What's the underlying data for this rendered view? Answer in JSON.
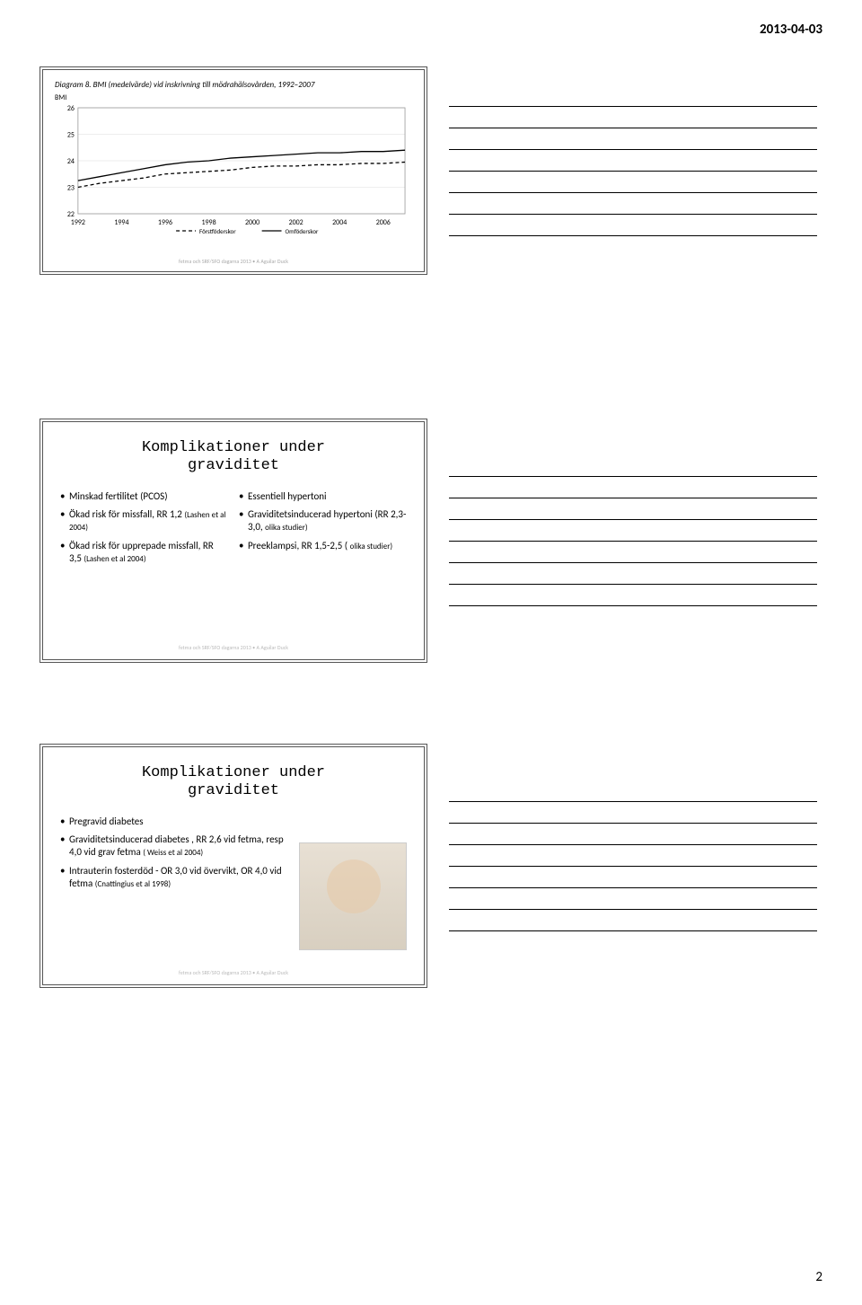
{
  "header_date": "2013-04-03",
  "page_number": "2",
  "slide1": {
    "diagram_label": "Diagram 8.",
    "title_rest": "BMI (medelvärde) vid inskrivning till mödrahälsovården, 1992–2007",
    "y_label": "BMI",
    "y_ticks": [
      22,
      23,
      24,
      25,
      26
    ],
    "x_ticks": [
      1992,
      1994,
      1996,
      1998,
      2000,
      2002,
      2004,
      2006
    ],
    "series": [
      {
        "name": "Förstföderskor",
        "dash": "4,3",
        "color": "#000000",
        "points": [
          [
            1992,
            23.0
          ],
          [
            1993,
            23.15
          ],
          [
            1994,
            23.25
          ],
          [
            1995,
            23.35
          ],
          [
            1996,
            23.5
          ],
          [
            1997,
            23.55
          ],
          [
            1998,
            23.6
          ],
          [
            1999,
            23.65
          ],
          [
            2000,
            23.75
          ],
          [
            2001,
            23.8
          ],
          [
            2002,
            23.8
          ],
          [
            2003,
            23.85
          ],
          [
            2004,
            23.85
          ],
          [
            2005,
            23.9
          ],
          [
            2006,
            23.9
          ],
          [
            2007,
            23.95
          ]
        ]
      },
      {
        "name": "Omföderskor",
        "dash": "",
        "color": "#000000",
        "points": [
          [
            1992,
            23.25
          ],
          [
            1993,
            23.4
          ],
          [
            1994,
            23.55
          ],
          [
            1995,
            23.7
          ],
          [
            1996,
            23.85
          ],
          [
            1997,
            23.95
          ],
          [
            1998,
            24.0
          ],
          [
            1999,
            24.1
          ],
          [
            2000,
            24.15
          ],
          [
            2001,
            24.2
          ],
          [
            2002,
            24.25
          ],
          [
            2003,
            24.3
          ],
          [
            2004,
            24.3
          ],
          [
            2005,
            24.35
          ],
          [
            2006,
            24.35
          ],
          [
            2007,
            24.4
          ]
        ]
      }
    ],
    "xlim": [
      1992,
      2007
    ],
    "ylim": [
      22,
      26
    ],
    "line_width": 1.3,
    "footnote": "fetma och SRF/SFO dagarna 2013 • A Aguilar Duck"
  },
  "slide2": {
    "heading1": "Komplikationer under",
    "heading2": "graviditet",
    "left": [
      {
        "main": "Minskad fertilitet (PCOS)",
        "sub": ""
      },
      {
        "main": "Ökad risk för missfall, RR 1,2",
        "sub": "(Lashen et al 2004)"
      },
      {
        "main": "Ökad risk för upprepade missfall, RR 3,5",
        "sub": "(Lashen et al 2004)"
      }
    ],
    "right": [
      {
        "main": "Essentiell hypertoni",
        "sub": ""
      },
      {
        "main": "Graviditetsinducerad hypertoni (RR 2,3-3,0,",
        "sub": "olika studier)"
      },
      {
        "main": "Preeklampsi, RR 1,5-2,5 (",
        "sub": "olika studier)"
      }
    ],
    "footnote": "fetma och SRF/SFO dagarna 2013 • A Aguilar Duck"
  },
  "slide3": {
    "heading1": "Komplikationer under",
    "heading2": "graviditet",
    "items": [
      {
        "main": "Pregravid diabetes",
        "sub": ""
      },
      {
        "main": "Graviditetsinducerad diabetes , RR 2,6 vid fetma, resp 4,0 vid grav fetma",
        "sub": "( Weiss et al 2004)"
      },
      {
        "main": "Intrauterin fosterdöd - OR 3,0 vid övervikt, OR 4,0 vid fetma",
        "sub": "(Cnattingius et al 1998)"
      }
    ],
    "footnote": "fetma och SRF/SFO dagarna 2013 • A Aguilar Duck"
  }
}
